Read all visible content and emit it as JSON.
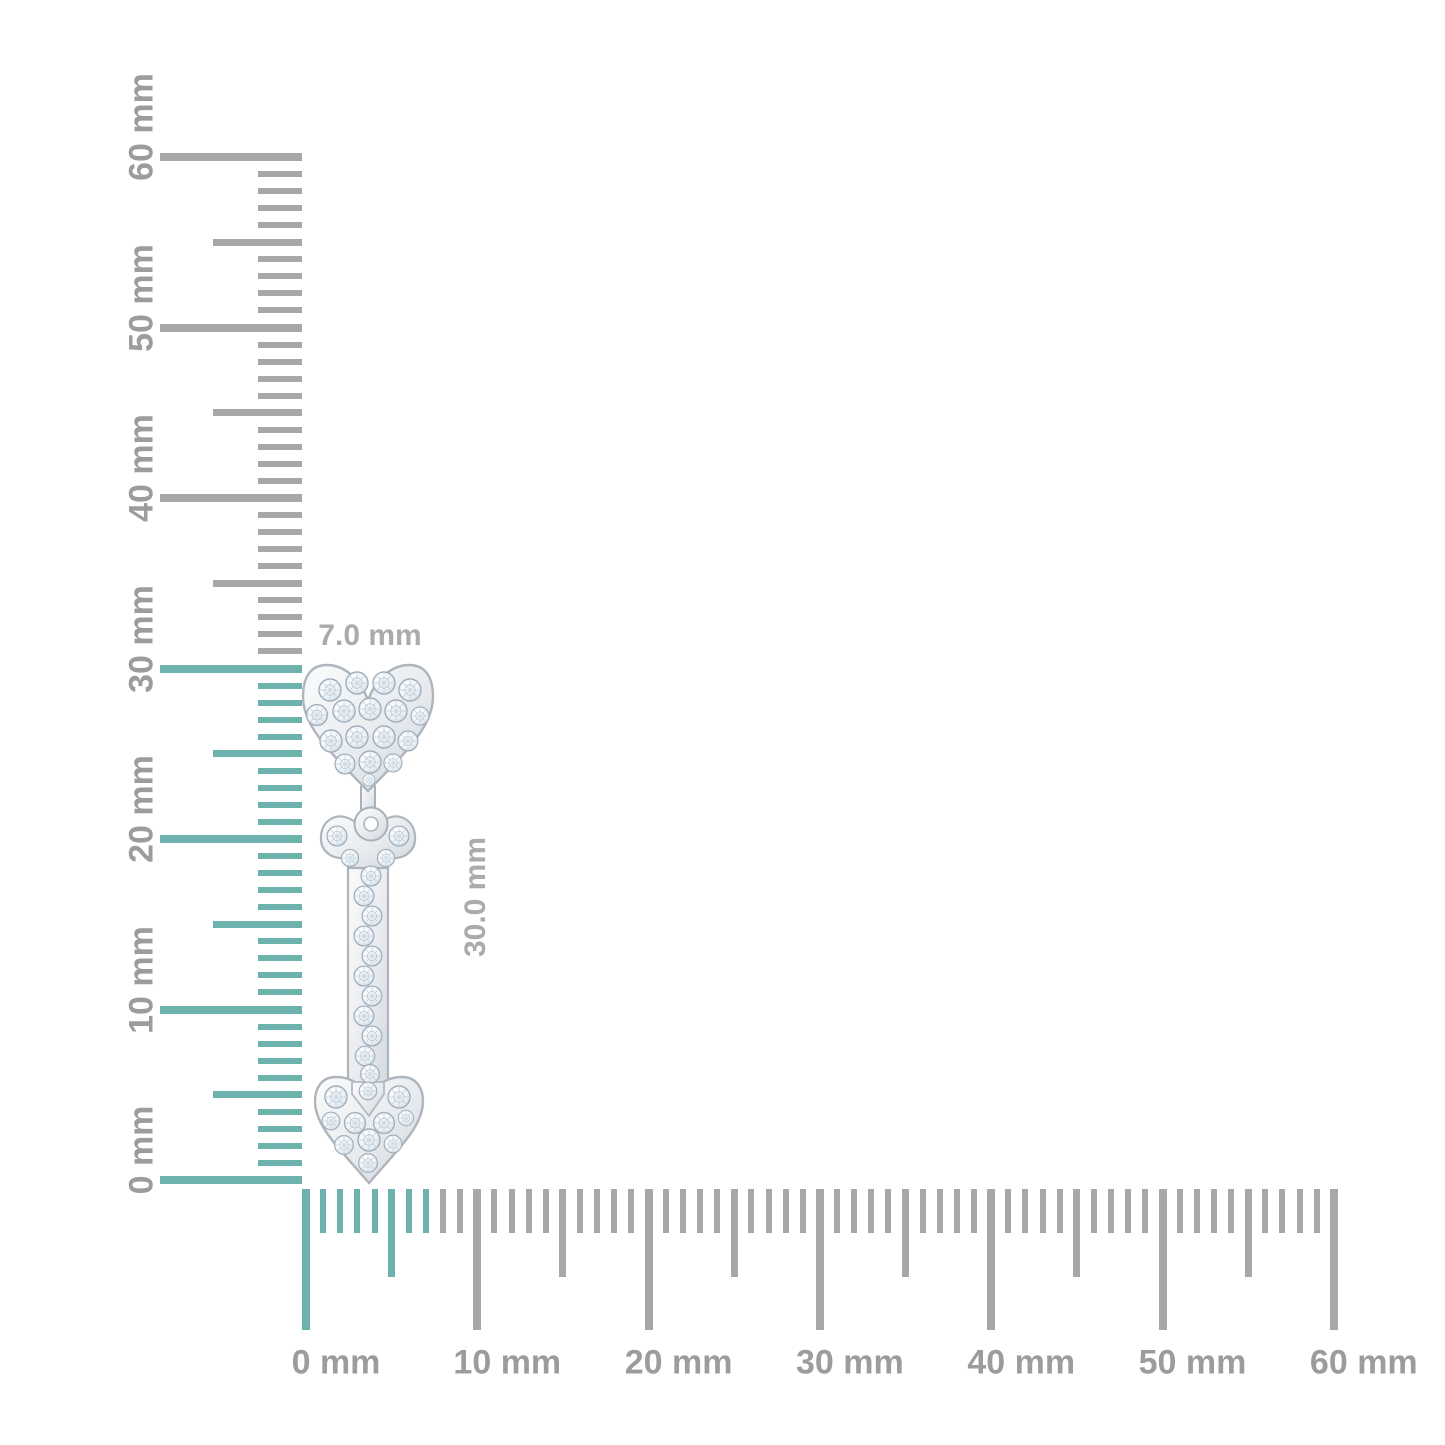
{
  "dimension_labels": {
    "width": "7.0 mm",
    "height": "30.0 mm"
  },
  "vertical_ruler": {
    "unit": "mm",
    "min": 0,
    "max": 60,
    "major_step": 10,
    "half_step": 5,
    "minor_step": 1,
    "highlight_from": 0,
    "highlight_to": 30,
    "major_labels": [
      "0 mm",
      "10 mm",
      "20 mm",
      "30 mm",
      "40 mm",
      "50 mm",
      "60 mm"
    ]
  },
  "horizontal_ruler": {
    "unit": "mm",
    "min": 0,
    "max": 60,
    "major_step": 10,
    "half_step": 5,
    "minor_step": 1,
    "highlight_from": 0,
    "highlight_to": 7,
    "major_labels": [
      "0 mm",
      "10 mm",
      "20 mm",
      "30 mm",
      "40 mm",
      "50 mm",
      "60 mm"
    ]
  },
  "colors": {
    "highlight_teal": "#6db2ac",
    "tick_gray": "#a7a7a7",
    "ruler_label_gray": "#9c9c9c",
    "dimension_label_gray": "#ababab",
    "metal_stroke": "#aeb5bc",
    "diamond_stroke": "#9fadba"
  },
  "illustration": {
    "name": "diamond-heart-arrow-drop-earring"
  }
}
